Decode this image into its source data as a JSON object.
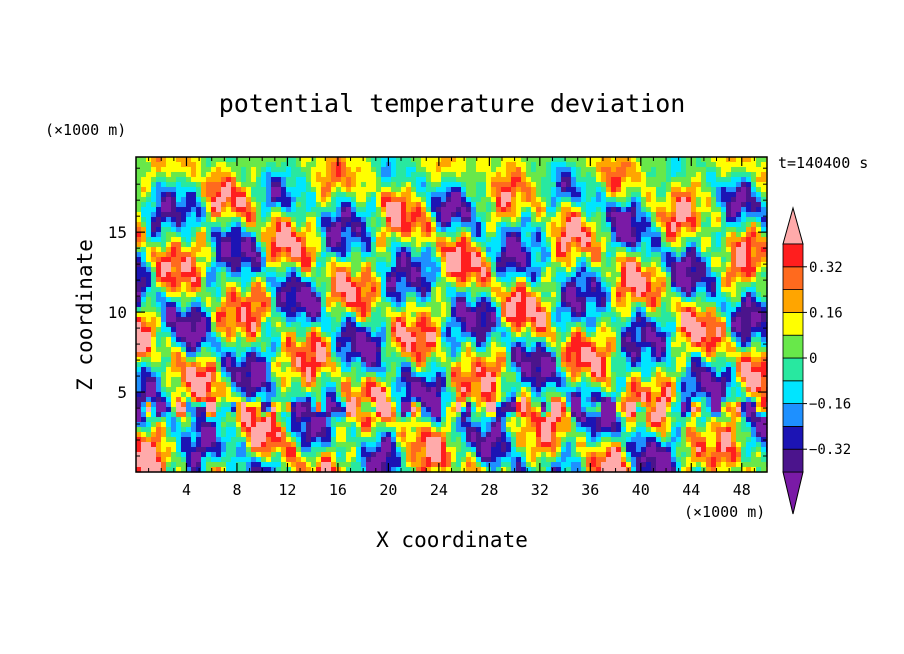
{
  "chart_data": {
    "type": "heatmap",
    "title": "potential temperature deviation",
    "xlabel": "X coordinate",
    "ylabel": "Z coordinate",
    "x_unit": "(×1000 m)",
    "y_unit": "(×1000 m)",
    "time_label": "t=140400 s",
    "xlim": [
      0,
      50
    ],
    "ylim": [
      0,
      19.7
    ],
    "x_ticks": [
      4,
      8,
      12,
      16,
      20,
      24,
      28,
      32,
      36,
      40,
      44,
      48
    ],
    "y_ticks": [
      5,
      10,
      15
    ],
    "colorbar": {
      "levels": [
        -0.48,
        -0.4,
        -0.32,
        -0.24,
        -0.16,
        -0.08,
        0,
        0.08,
        0.16,
        0.24,
        0.32,
        0.4,
        0.48
      ],
      "tick_labels": [
        "0.32",
        "0.16",
        "0",
        "−0.16",
        "−0.32"
      ],
      "tick_values": [
        0.32,
        0.16,
        0,
        -0.16,
        -0.32
      ],
      "colors": [
        "#7a1aa6",
        "#4b148c",
        "#1c14b4",
        "#1e90ff",
        "#00e5ff",
        "#28e8a0",
        "#68e84a",
        "#ffff00",
        "#ffa500",
        "#ff6a1e",
        "#ff1e1e",
        "#ffaaaa"
      ],
      "extend": "both"
    }
  }
}
